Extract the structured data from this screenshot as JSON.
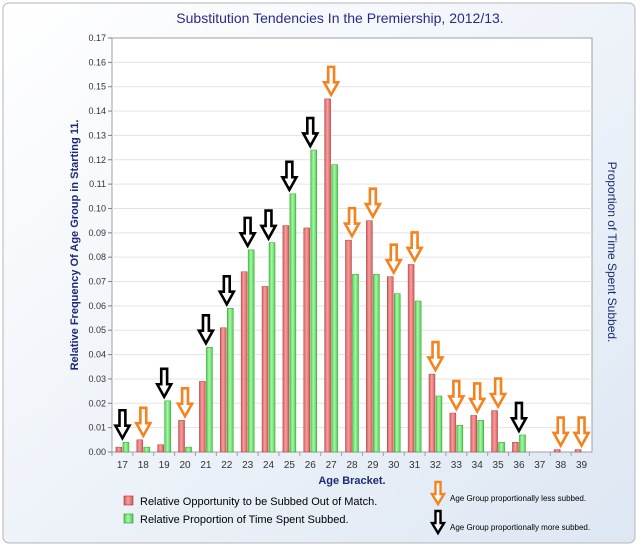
{
  "chart_data": {
    "type": "bar",
    "title": "Substitution Tendencies In the Premiership, 2012/13.",
    "xlabel": "Age Bracket.",
    "ylabel": "Relative Frequency Of Age Group in Starting 11.",
    "y2label": "Proportion of Time Spent Subbed.",
    "ylim": [
      0,
      0.17
    ],
    "yticks": [
      "0.00",
      "0.01",
      "0.02",
      "0.03",
      "0.04",
      "0.05",
      "0.06",
      "0.07",
      "0.08",
      "0.09",
      "0.10",
      "0.11",
      "0.12",
      "0.13",
      "0.14",
      "0.15",
      "0.16",
      "0.17"
    ],
    "categories": [
      "17",
      "18",
      "19",
      "20",
      "21",
      "22",
      "23",
      "24",
      "25",
      "26",
      "27",
      "28",
      "29",
      "30",
      "31",
      "32",
      "33",
      "34",
      "35",
      "36",
      "37",
      "38",
      "39"
    ],
    "series": [
      {
        "name": "Relative Opportunity to be Subbed Out of Match.",
        "color": "#f08080",
        "values": [
          0.002,
          0.005,
          0.003,
          0.013,
          0.029,
          0.051,
          0.074,
          0.068,
          0.093,
          0.092,
          0.145,
          0.087,
          0.095,
          0.072,
          0.077,
          0.032,
          0.016,
          0.015,
          0.017,
          0.004,
          0.0,
          0.001,
          0.001
        ]
      },
      {
        "name": "Relative Proportion of Time Spent Subbed.",
        "color": "#7cee7c",
        "values": [
          0.004,
          0.002,
          0.021,
          0.002,
          0.043,
          0.059,
          0.083,
          0.086,
          0.106,
          0.124,
          0.118,
          0.073,
          0.073,
          0.065,
          0.062,
          0.023,
          0.011,
          0.013,
          0.004,
          0.007,
          0.0,
          0.0,
          0.0
        ]
      }
    ],
    "arrows": [
      {
        "category": "17",
        "kind": "more"
      },
      {
        "category": "18",
        "kind": "less"
      },
      {
        "category": "19",
        "kind": "more"
      },
      {
        "category": "20",
        "kind": "less"
      },
      {
        "category": "21",
        "kind": "more"
      },
      {
        "category": "22",
        "kind": "more"
      },
      {
        "category": "23",
        "kind": "more"
      },
      {
        "category": "24",
        "kind": "more"
      },
      {
        "category": "25",
        "kind": "more"
      },
      {
        "category": "26",
        "kind": "more"
      },
      {
        "category": "27",
        "kind": "less"
      },
      {
        "category": "28",
        "kind": "less"
      },
      {
        "category": "29",
        "kind": "less"
      },
      {
        "category": "30",
        "kind": "less"
      },
      {
        "category": "31",
        "kind": "less"
      },
      {
        "category": "32",
        "kind": "less"
      },
      {
        "category": "33",
        "kind": "less"
      },
      {
        "category": "34",
        "kind": "less"
      },
      {
        "category": "35",
        "kind": "less"
      },
      {
        "category": "36",
        "kind": "more"
      },
      {
        "category": "38",
        "kind": "less"
      },
      {
        "category": "39",
        "kind": "less"
      }
    ],
    "arrow_legend": {
      "less": "Age Group proportionally less subbed.",
      "more": "Age Group proportionally more subbed."
    },
    "legend_position": "bottom-left"
  }
}
